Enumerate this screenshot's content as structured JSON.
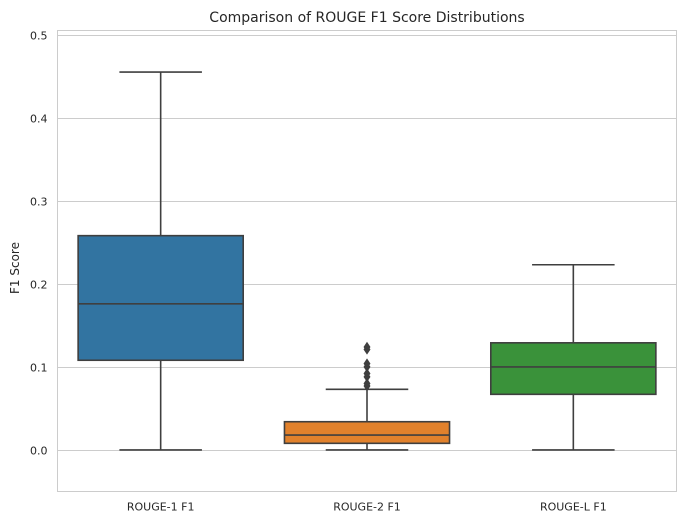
{
  "chart_data": {
    "type": "boxplot",
    "title": "Comparison of ROUGE F1 Score Distributions",
    "xlabel": "",
    "ylabel": "F1 Score",
    "ylim": [
      -0.05,
      0.505
    ],
    "yticks": [
      0.0,
      0.1,
      0.2,
      0.3,
      0.4,
      0.5
    ],
    "ytick_labels": [
      "0.0",
      "0.1",
      "0.2",
      "0.3",
      "0.4",
      "0.5"
    ],
    "grid": "horizontal",
    "categories": [
      "ROUGE-1 F1",
      "ROUGE-2 F1",
      "ROUGE-L F1"
    ],
    "boxes": [
      {
        "whisker_low": 0.0,
        "q1": 0.108,
        "median": 0.176,
        "q3": 0.258,
        "whisker_high": 0.455,
        "outliers": [],
        "color": "#3274a1"
      },
      {
        "whisker_low": 0.0,
        "q1": 0.008,
        "median": 0.018,
        "q3": 0.034,
        "whisker_high": 0.073,
        "outliers": [
          0.077,
          0.08,
          0.088,
          0.092,
          0.1,
          0.104,
          0.121,
          0.124
        ],
        "color": "#e1812c"
      },
      {
        "whisker_low": 0.0,
        "q1": 0.067,
        "median": 0.1,
        "q3": 0.129,
        "whisker_high": 0.223,
        "outliers": [],
        "color": "#3a923a"
      }
    ]
  }
}
